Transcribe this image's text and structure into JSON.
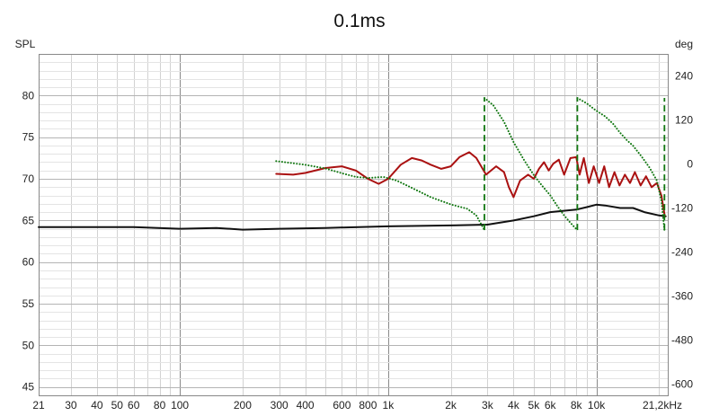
{
  "chart_data": {
    "type": "line",
    "title": "0.1ms",
    "ylabel": "SPL",
    "y2label": "deg",
    "x_scale": "log",
    "xlim": [
      21,
      22000
    ],
    "ylim": [
      44,
      85
    ],
    "y2lim": [
      -630,
      300
    ],
    "grid": true,
    "x_tick_labels": [
      {
        "value": 21,
        "label": "21"
      },
      {
        "value": 30,
        "label": "30"
      },
      {
        "value": 40,
        "label": "40"
      },
      {
        "value": 50,
        "label": "50"
      },
      {
        "value": 60,
        "label": "60"
      },
      {
        "value": 80,
        "label": "80"
      },
      {
        "value": 100,
        "label": "100"
      },
      {
        "value": 200,
        "label": "200"
      },
      {
        "value": 300,
        "label": "300"
      },
      {
        "value": 400,
        "label": "400"
      },
      {
        "value": 600,
        "label": "600"
      },
      {
        "value": 800,
        "label": "800"
      },
      {
        "value": 1000,
        "label": "1k"
      },
      {
        "value": 2000,
        "label": "2k"
      },
      {
        "value": 3000,
        "label": "3k"
      },
      {
        "value": 4000,
        "label": "4k"
      },
      {
        "value": 5000,
        "label": "5k"
      },
      {
        "value": 6000,
        "label": "6k"
      },
      {
        "value": 8000,
        "label": "8k"
      },
      {
        "value": 10000,
        "label": "10k"
      },
      {
        "value": 21200,
        "label": "21,2kHz"
      }
    ],
    "y_ticks": [
      45,
      50,
      55,
      60,
      65,
      70,
      75,
      80
    ],
    "y2_ticks": [
      -600,
      -480,
      -360,
      -240,
      -120,
      0,
      120,
      240
    ],
    "series": [
      {
        "color": "#111111",
        "axis": "left",
        "dash": "solid",
        "points": [
          [
            21,
            64.2
          ],
          [
            40,
            64.2
          ],
          [
            60,
            64.2
          ],
          [
            100,
            64.0
          ],
          [
            150,
            64.1
          ],
          [
            200,
            63.9
          ],
          [
            300,
            64.0
          ],
          [
            500,
            64.1
          ],
          [
            1000,
            64.3
          ],
          [
            2000,
            64.4
          ],
          [
            3000,
            64.5
          ],
          [
            4000,
            65.0
          ],
          [
            5000,
            65.5
          ],
          [
            6000,
            66.0
          ],
          [
            8000,
            66.3
          ],
          [
            9000,
            66.6
          ],
          [
            10000,
            66.9
          ],
          [
            11000,
            66.8
          ],
          [
            13000,
            66.5
          ],
          [
            15000,
            66.5
          ],
          [
            17000,
            66.0
          ],
          [
            20000,
            65.6
          ],
          [
            21500,
            65.5
          ]
        ]
      },
      {
        "color": "#aa1111",
        "axis": "left",
        "dash": "solid",
        "points": [
          [
            290,
            70.6
          ],
          [
            350,
            70.5
          ],
          [
            400,
            70.7
          ],
          [
            500,
            71.3
          ],
          [
            600,
            71.5
          ],
          [
            700,
            71.0
          ],
          [
            800,
            70.0
          ],
          [
            900,
            69.4
          ],
          [
            1000,
            70.0
          ],
          [
            1150,
            71.7
          ],
          [
            1300,
            72.5
          ],
          [
            1450,
            72.2
          ],
          [
            1600,
            71.7
          ],
          [
            1800,
            71.2
          ],
          [
            2000,
            71.5
          ],
          [
            2200,
            72.6
          ],
          [
            2450,
            73.2
          ],
          [
            2650,
            72.5
          ],
          [
            2950,
            70.5
          ],
          [
            3300,
            71.5
          ],
          [
            3600,
            70.8
          ],
          [
            3800,
            69.0
          ],
          [
            4000,
            67.8
          ],
          [
            4300,
            69.8
          ],
          [
            4700,
            70.5
          ],
          [
            5000,
            70.0
          ],
          [
            5300,
            71.2
          ],
          [
            5600,
            72.0
          ],
          [
            5900,
            71.0
          ],
          [
            6200,
            71.8
          ],
          [
            6600,
            72.3
          ],
          [
            7000,
            70.5
          ],
          [
            7500,
            72.5
          ],
          [
            8000,
            72.6
          ],
          [
            8300,
            70.5
          ],
          [
            8700,
            72.5
          ],
          [
            9200,
            69.5
          ],
          [
            9700,
            71.5
          ],
          [
            10300,
            69.5
          ],
          [
            10900,
            71.5
          ],
          [
            11500,
            69.0
          ],
          [
            12200,
            70.8
          ],
          [
            12900,
            69.2
          ],
          [
            13700,
            70.5
          ],
          [
            14500,
            69.5
          ],
          [
            15300,
            70.8
          ],
          [
            16300,
            69.2
          ],
          [
            17300,
            70.3
          ],
          [
            18400,
            69.0
          ],
          [
            19500,
            69.5
          ],
          [
            20500,
            68.0
          ],
          [
            21300,
            65.5
          ]
        ]
      },
      {
        "color": "#117711",
        "axis": "right",
        "dash": "dotted",
        "points": [
          [
            290,
            8
          ],
          [
            400,
            -2
          ],
          [
            500,
            -12
          ],
          [
            600,
            -25
          ],
          [
            700,
            -35
          ],
          [
            800,
            -38
          ],
          [
            950,
            -35
          ],
          [
            1100,
            -45
          ],
          [
            1300,
            -65
          ],
          [
            1600,
            -90
          ],
          [
            2000,
            -110
          ],
          [
            2400,
            -122
          ],
          [
            2650,
            -140
          ],
          [
            2900,
            -180
          ]
        ]
      },
      {
        "color": "#117711",
        "axis": "right",
        "dash": "dashed",
        "points": [
          [
            2900,
            -180
          ],
          [
            2900,
            180
          ]
        ]
      },
      {
        "color": "#117711",
        "axis": "right",
        "dash": "dotted",
        "points": [
          [
            2900,
            180
          ],
          [
            3200,
            160
          ],
          [
            3600,
            115
          ],
          [
            4000,
            60
          ],
          [
            4500,
            10
          ],
          [
            5000,
            -30
          ],
          [
            5500,
            -60
          ],
          [
            6000,
            -85
          ],
          [
            6500,
            -115
          ],
          [
            7000,
            -140
          ],
          [
            7500,
            -160
          ],
          [
            8100,
            -180
          ]
        ]
      },
      {
        "color": "#117711",
        "axis": "right",
        "dash": "dashed",
        "points": [
          [
            8100,
            -180
          ],
          [
            8100,
            180
          ]
        ]
      },
      {
        "color": "#117711",
        "axis": "right",
        "dash": "dotted",
        "points": [
          [
            8100,
            180
          ],
          [
            9000,
            165
          ],
          [
            10000,
            145
          ],
          [
            11000,
            130
          ],
          [
            12000,
            110
          ],
          [
            13000,
            85
          ],
          [
            14000,
            65
          ],
          [
            15000,
            50
          ],
          [
            16500,
            20
          ],
          [
            18000,
            -10
          ],
          [
            19500,
            -45
          ],
          [
            20500,
            -100
          ],
          [
            21200,
            -180
          ]
        ]
      },
      {
        "color": "#117711",
        "axis": "right",
        "dash": "dashed",
        "points": [
          [
            21200,
            -180
          ],
          [
            21200,
            180
          ]
        ]
      }
    ]
  }
}
